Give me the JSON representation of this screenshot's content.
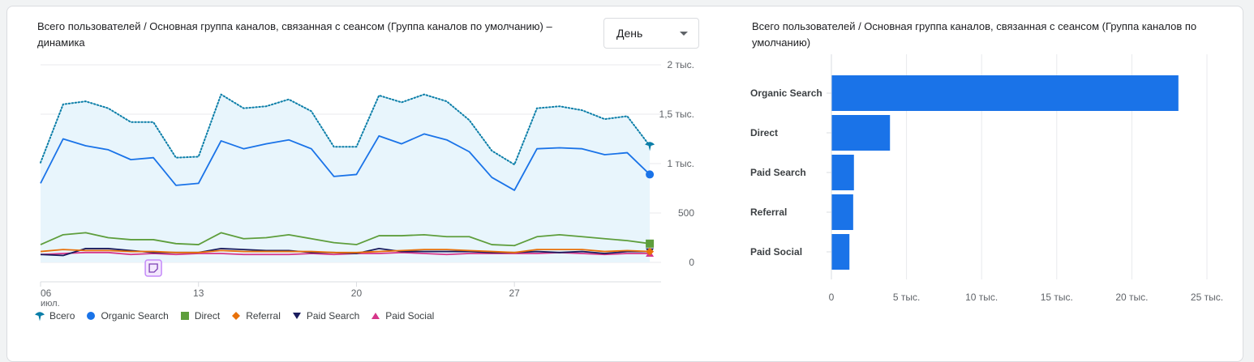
{
  "left_title": "Всего пользователей / Основная группа каналов, связанная с сеансом (Группа каналов по умолчанию) – динамика",
  "right_title": "Всего пользователей / Основная группа каналов, связанная с сеансом (Группа каналов по умолчанию)",
  "granularity": {
    "selected": "День"
  },
  "chart_data": [
    {
      "type": "line",
      "title": "Всего пользователей / Основная группа каналов, связанная с сеансом (Группа каналов по умолчанию) – динамика",
      "x_ticks": [
        {
          "day": 1,
          "label": "06",
          "sublabel": "июл."
        },
        {
          "day": 8,
          "label": "13",
          "sublabel": ""
        },
        {
          "day": 15,
          "label": "20",
          "sublabel": ""
        },
        {
          "day": 22,
          "label": "27",
          "sublabel": ""
        }
      ],
      "x_range": [
        1,
        28.5
      ],
      "ylim": [
        0,
        2000
      ],
      "y_ticks": [
        {
          "value": 2000,
          "label": "2 тыс."
        },
        {
          "value": 1500,
          "label": "1,5 тыс."
        },
        {
          "value": 1000,
          "label": "1 тыс."
        },
        {
          "value": 500,
          "label": "500"
        },
        {
          "value": 0,
          "label": "0"
        }
      ],
      "x": [
        1,
        2,
        3,
        4,
        5,
        6,
        7,
        8,
        9,
        10,
        11,
        12,
        13,
        14,
        15,
        16,
        17,
        18,
        19,
        20,
        21,
        22,
        23,
        24,
        25,
        26,
        27,
        28
      ],
      "series": [
        {
          "name": "Всего",
          "color": "#0b7ea8",
          "style": "dotted",
          "marker": "pin",
          "values": [
            1010,
            1600,
            1630,
            1560,
            1420,
            1420,
            1060,
            1070,
            1700,
            1560,
            1580,
            1650,
            1530,
            1170,
            1170,
            1690,
            1620,
            1700,
            1630,
            1440,
            1130,
            990,
            1560,
            1580,
            1540,
            1450,
            1480,
            1180
          ]
        },
        {
          "name": "Organic Search",
          "color": "#1a73e8",
          "style": "solid",
          "marker": "circle",
          "values": [
            800,
            1250,
            1180,
            1140,
            1040,
            1060,
            780,
            800,
            1230,
            1150,
            1200,
            1240,
            1150,
            870,
            890,
            1280,
            1200,
            1300,
            1240,
            1120,
            860,
            730,
            1150,
            1160,
            1150,
            1090,
            1110,
            890
          ]
        },
        {
          "name": "Direct",
          "color": "#5e9e3c",
          "style": "solid",
          "marker": "square",
          "values": [
            180,
            280,
            300,
            250,
            230,
            230,
            190,
            180,
            300,
            240,
            250,
            280,
            240,
            200,
            180,
            270,
            270,
            280,
            260,
            260,
            180,
            170,
            260,
            280,
            260,
            240,
            220,
            190
          ]
        },
        {
          "name": "Referral",
          "color": "#e8710a",
          "style": "solid",
          "marker": "diamond",
          "values": [
            110,
            130,
            120,
            120,
            110,
            110,
            100,
            100,
            120,
            110,
            110,
            110,
            110,
            100,
            100,
            110,
            120,
            130,
            130,
            120,
            110,
            100,
            130,
            130,
            130,
            110,
            120,
            110
          ]
        },
        {
          "name": "Paid Search",
          "color": "#1a1c5e",
          "style": "solid",
          "marker": "triangle-down",
          "values": [
            80,
            70,
            140,
            140,
            120,
            100,
            100,
            100,
            140,
            130,
            120,
            120,
            100,
            100,
            90,
            140,
            110,
            110,
            110,
            110,
            100,
            100,
            110,
            100,
            110,
            90,
            110,
            110
          ]
        },
        {
          "name": "Paid Social",
          "color": "#d6358a",
          "style": "solid",
          "marker": "triangle-up",
          "values": [
            80,
            90,
            100,
            100,
            80,
            90,
            80,
            90,
            90,
            80,
            80,
            80,
            90,
            80,
            90,
            90,
            100,
            90,
            80,
            90,
            90,
            90,
            90,
            100,
            90,
            80,
            90,
            90
          ]
        }
      ],
      "annotation": {
        "day": 6,
        "icon": "note-icon",
        "color": "#c58af9"
      }
    },
    {
      "type": "bar",
      "orientation": "horizontal",
      "title": "Всего пользователей / Основная группа каналов, связанная с сеансом (Группа каналов по умолчанию)",
      "categories": [
        "Organic Search",
        "Direct",
        "Paid Search",
        "Referral",
        "Paid Social"
      ],
      "values": [
        23100,
        3900,
        1500,
        1450,
        1200
      ],
      "color": "#1a73e8",
      "xlim": [
        0,
        25000
      ],
      "x_ticks": [
        {
          "value": 0,
          "label": "0"
        },
        {
          "value": 5000,
          "label": "5 тыс."
        },
        {
          "value": 10000,
          "label": "10 тыс."
        },
        {
          "value": 15000,
          "label": "15 тыс."
        },
        {
          "value": 20000,
          "label": "20 тыс."
        },
        {
          "value": 25000,
          "label": "25 тыс."
        }
      ]
    }
  ]
}
